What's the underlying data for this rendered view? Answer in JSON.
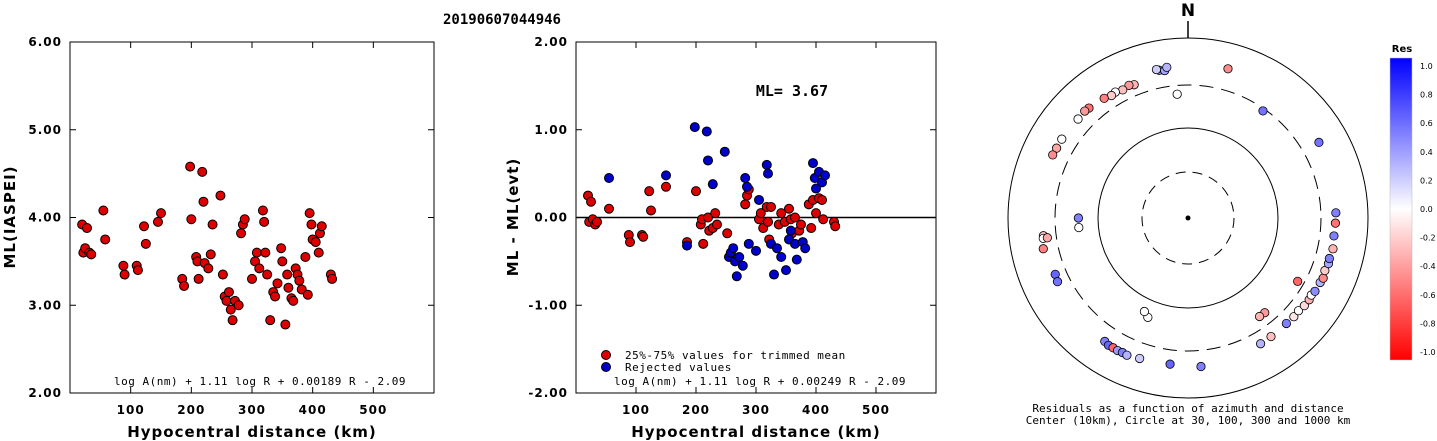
{
  "page_title": "20190607044946",
  "chart_data": [
    {
      "type": "scatter",
      "title": "",
      "xlabel": "Hypocentral distance (km)",
      "ylabel": "ML(IASPEI)",
      "xlim": [
        0,
        600
      ],
      "ylim": [
        2.0,
        6.0
      ],
      "x_ticks": [
        100,
        200,
        300,
        400,
        500
      ],
      "y_ticks": [
        "2.00",
        "3.00",
        "4.00",
        "5.00",
        "6.00"
      ],
      "formula": "log A(nm) + 1.11 log R + 0.00189 R - 2.09",
      "series": [
        {
          "color": "#dd0000",
          "points": [
            [
              20,
              3.92
            ],
            [
              22,
              3.6
            ],
            [
              25,
              3.65
            ],
            [
              28,
              3.88
            ],
            [
              32,
              3.6
            ],
            [
              35,
              3.58
            ],
            [
              55,
              4.08
            ],
            [
              58,
              3.75
            ],
            [
              88,
              3.45
            ],
            [
              90,
              3.35
            ],
            [
              110,
              3.45
            ],
            [
              112,
              3.4
            ],
            [
              122,
              3.9
            ],
            [
              125,
              3.7
            ],
            [
              145,
              3.95
            ],
            [
              150,
              4.05
            ],
            [
              185,
              3.3
            ],
            [
              188,
              3.22
            ],
            [
              198,
              4.58
            ],
            [
              200,
              3.98
            ],
            [
              208,
              3.55
            ],
            [
              210,
              3.5
            ],
            [
              212,
              3.3
            ],
            [
              218,
              4.52
            ],
            [
              220,
              4.18
            ],
            [
              222,
              3.48
            ],
            [
              228,
              3.42
            ],
            [
              232,
              3.58
            ],
            [
              235,
              3.92
            ],
            [
              248,
              4.25
            ],
            [
              252,
              3.35
            ],
            [
              255,
              3.1
            ],
            [
              258,
              3.05
            ],
            [
              262,
              3.15
            ],
            [
              265,
              2.95
            ],
            [
              268,
              2.83
            ],
            [
              272,
              3.05
            ],
            [
              278,
              3.0
            ],
            [
              282,
              3.82
            ],
            [
              285,
              3.92
            ],
            [
              288,
              3.98
            ],
            [
              300,
              3.3
            ],
            [
              305,
              3.5
            ],
            [
              308,
              3.6
            ],
            [
              312,
              3.42
            ],
            [
              318,
              4.08
            ],
            [
              320,
              3.95
            ],
            [
              322,
              3.6
            ],
            [
              325,
              3.35
            ],
            [
              330,
              2.83
            ],
            [
              335,
              3.15
            ],
            [
              338,
              3.1
            ],
            [
              342,
              3.25
            ],
            [
              348,
              3.65
            ],
            [
              350,
              3.5
            ],
            [
              355,
              2.78
            ],
            [
              358,
              3.35
            ],
            [
              360,
              3.2
            ],
            [
              365,
              3.08
            ],
            [
              368,
              3.05
            ],
            [
              372,
              3.42
            ],
            [
              375,
              3.35
            ],
            [
              378,
              3.28
            ],
            [
              382,
              3.18
            ],
            [
              388,
              3.55
            ],
            [
              392,
              3.12
            ],
            [
              395,
              4.05
            ],
            [
              398,
              3.92
            ],
            [
              400,
              3.75
            ],
            [
              405,
              3.72
            ],
            [
              410,
              3.6
            ],
            [
              412,
              3.82
            ],
            [
              415,
              3.9
            ],
            [
              430,
              3.35
            ],
            [
              432,
              3.3
            ]
          ]
        }
      ]
    },
    {
      "type": "scatter",
      "title": "",
      "xlabel": "Hypocentral distance (km)",
      "ylabel": "ML - ML(evt)",
      "xlim": [
        0,
        600
      ],
      "ylim": [
        -2.0,
        2.0
      ],
      "x_ticks": [
        100,
        200,
        300,
        400,
        500
      ],
      "y_ticks": [
        "-2.00",
        "-1.00",
        "0.00",
        "1.00",
        "2.00"
      ],
      "reference_line": 0,
      "ml_label": "ML= 3.67",
      "formula": "log A(nm) + 1.11 log R + 0.00249 R - 2.09",
      "legend": [
        {
          "label": "25%-75% values for trimmed mean",
          "color": "#dd0000"
        },
        {
          "label": "Rejected values",
          "color": "#0000cc"
        }
      ],
      "series": [
        {
          "name": "25%-75% values for trimmed mean",
          "color": "#dd0000",
          "points": [
            [
              20,
              0.25
            ],
            [
              22,
              -0.05
            ],
            [
              25,
              0.18
            ],
            [
              28,
              -0.02
            ],
            [
              32,
              -0.08
            ],
            [
              35,
              -0.05
            ],
            [
              55,
              0.1
            ],
            [
              88,
              -0.2
            ],
            [
              90,
              -0.28
            ],
            [
              110,
              -0.2
            ],
            [
              112,
              -0.22
            ],
            [
              122,
              0.3
            ],
            [
              125,
              0.08
            ],
            [
              150,
              0.35
            ],
            [
              185,
              -0.28
            ],
            [
              200,
              0.3
            ],
            [
              208,
              -0.08
            ],
            [
              210,
              -0.02
            ],
            [
              212,
              -0.3
            ],
            [
              220,
              0.0
            ],
            [
              222,
              -0.15
            ],
            [
              228,
              -0.12
            ],
            [
              232,
              0.05
            ],
            [
              235,
              -0.08
            ],
            [
              252,
              -0.18
            ],
            [
              282,
              0.15
            ],
            [
              285,
              0.25
            ],
            [
              288,
              0.32
            ],
            [
              305,
              -0.02
            ],
            [
              308,
              0.05
            ],
            [
              312,
              -0.12
            ],
            [
              318,
              0.12
            ],
            [
              320,
              -0.05
            ],
            [
              322,
              -0.25
            ],
            [
              325,
              0.12
            ],
            [
              338,
              -0.08
            ],
            [
              342,
              0.05
            ],
            [
              348,
              -0.05
            ],
            [
              355,
              0.1
            ],
            [
              358,
              -0.02
            ],
            [
              360,
              -0.18
            ],
            [
              365,
              0.0
            ],
            [
              372,
              -0.15
            ],
            [
              375,
              -0.08
            ],
            [
              388,
              0.15
            ],
            [
              392,
              -0.12
            ],
            [
              395,
              0.2
            ],
            [
              400,
              0.05
            ],
            [
              405,
              0.22
            ],
            [
              410,
              0.2
            ],
            [
              412,
              -0.02
            ],
            [
              430,
              -0.05
            ],
            [
              432,
              -0.1
            ]
          ]
        },
        {
          "name": "Rejected values",
          "color": "#0000cc",
          "points": [
            [
              55,
              0.45
            ],
            [
              150,
              0.48
            ],
            [
              185,
              -0.32
            ],
            [
              198,
              1.03
            ],
            [
              218,
              0.98
            ],
            [
              220,
              0.65
            ],
            [
              248,
              0.75
            ],
            [
              228,
              0.38
            ],
            [
              255,
              -0.45
            ],
            [
              258,
              -0.4
            ],
            [
              262,
              -0.35
            ],
            [
              265,
              -0.5
            ],
            [
              268,
              -0.67
            ],
            [
              272,
              -0.45
            ],
            [
              278,
              -0.55
            ],
            [
              282,
              0.45
            ],
            [
              285,
              0.35
            ],
            [
              288,
              -0.3
            ],
            [
              300,
              -0.38
            ],
            [
              305,
              0.2
            ],
            [
              318,
              0.6
            ],
            [
              320,
              0.5
            ],
            [
              325,
              -0.3
            ],
            [
              330,
              -0.65
            ],
            [
              335,
              -0.35
            ],
            [
              342,
              -0.45
            ],
            [
              350,
              -0.6
            ],
            [
              355,
              -0.25
            ],
            [
              358,
              -0.15
            ],
            [
              365,
              -0.3
            ],
            [
              368,
              -0.48
            ],
            [
              378,
              -0.28
            ],
            [
              382,
              -0.35
            ],
            [
              395,
              0.62
            ],
            [
              398,
              0.45
            ],
            [
              400,
              0.33
            ],
            [
              405,
              0.52
            ],
            [
              410,
              0.4
            ],
            [
              415,
              0.48
            ]
          ]
        }
      ]
    },
    {
      "type": "polar-scatter",
      "title": "",
      "north_label": "N",
      "caption_lines": [
        "Residuals as a function of azimuth and distance",
        "Center (10km), Circle at 30, 100, 300 and 1000 km"
      ],
      "circle_km": [
        30,
        100,
        300,
        1000
      ],
      "colorbar": {
        "title": "Res",
        "ticks": [
          "1.0",
          "0.8",
          "0.6",
          "0.4",
          "0.2",
          "0.0",
          "-0.2",
          "-0.4",
          "-0.6",
          "-0.8",
          "-1.0"
        ],
        "max_color": "#0000ff",
        "mid_color": "#ffffff",
        "min_color": "#ff0000"
      },
      "stations": [
        {
          "az": 349,
          "dist": 470,
          "res": 0.4
        },
        {
          "az": 351,
          "dist": 455,
          "res": 0.35
        },
        {
          "az": 352,
          "dist": 490,
          "res": 0.3
        },
        {
          "az": 348,
          "dist": 485,
          "res": 0.2
        },
        {
          "az": 15,
          "dist": 520,
          "res": -0.45
        },
        {
          "az": 338,
          "dist": 395,
          "res": -0.3
        },
        {
          "az": 336,
          "dist": 410,
          "res": -0.4
        },
        {
          "az": 333,
          "dist": 395,
          "res": -0.25
        },
        {
          "az": 330,
          "dist": 412,
          "res": 0.0
        },
        {
          "az": 328,
          "dist": 402,
          "res": -0.2
        },
        {
          "az": 325,
          "dist": 420,
          "res": -0.5
        },
        {
          "az": 318,
          "dist": 440,
          "res": -0.55
        },
        {
          "az": 316,
          "dist": 448,
          "res": -0.4
        },
        {
          "az": 312,
          "dist": 440,
          "res": 0.0
        },
        {
          "az": 302,
          "dist": 450,
          "res": 0.0
        },
        {
          "az": 298,
          "dist": 450,
          "res": -0.35
        },
        {
          "az": 295,
          "dist": 455,
          "res": -0.45
        },
        {
          "az": 263,
          "dist": 415,
          "res": -0.2
        },
        {
          "az": 262,
          "dist": 420,
          "res": 0.0
        },
        {
          "az": 258,
          "dist": 440,
          "res": -0.5
        },
        {
          "az": 262,
          "dist": 378,
          "res": -0.35
        },
        {
          "az": 247,
          "dist": 400,
          "res": 0.6
        },
        {
          "az": 244,
          "dist": 410,
          "res": 0.55
        },
        {
          "az": 214,
          "dist": 450,
          "res": 0.5
        },
        {
          "az": 212,
          "dist": 465,
          "res": 0.6
        },
        {
          "az": 210,
          "dist": 462,
          "res": -0.6
        },
        {
          "az": 208,
          "dist": 465,
          "res": 0.4
        },
        {
          "az": 206,
          "dist": 460,
          "res": 0.5
        },
        {
          "az": 204,
          "dist": 466,
          "res": 0.3
        },
        {
          "az": 199,
          "dist": 447,
          "res": 0.2
        },
        {
          "az": 187,
          "dist": 432,
          "res": 0.6
        },
        {
          "az": 175,
          "dist": 453,
          "res": 0.5
        },
        {
          "az": 137,
          "dist": 400,
          "res": 0.5
        },
        {
          "az": 133,
          "dist": 405,
          "res": -0.1
        },
        {
          "az": 130,
          "dist": 400,
          "res": 0.0
        },
        {
          "az": 127,
          "dist": 415,
          "res": -0.15
        },
        {
          "az": 124,
          "dist": 420,
          "res": -0.3
        },
        {
          "az": 122,
          "dist": 412,
          "res": 0.0
        },
        {
          "az": 120,
          "dist": 425,
          "res": 0.45
        },
        {
          "az": 116,
          "dist": 430,
          "res": 0.3
        },
        {
          "az": 114,
          "dist": 440,
          "res": -0.45
        },
        {
          "az": 111,
          "dist": 425,
          "res": -0.2
        },
        {
          "az": 108,
          "dist": 437,
          "res": 0.35
        },
        {
          "az": 106,
          "dist": 430,
          "res": 0.5
        },
        {
          "az": 102,
          "dist": 443,
          "res": -0.3
        },
        {
          "az": 97,
          "dist": 430,
          "res": 0.5
        },
        {
          "az": 92,
          "dist": 435,
          "res": -0.55
        },
        {
          "az": 88,
          "dist": 440,
          "res": 0.5
        },
        {
          "az": 60,
          "dist": 478,
          "res": 0.55
        },
        {
          "az": 150,
          "dist": 410,
          "res": 0.3
        },
        {
          "az": 145,
          "dist": 405,
          "res": -0.25
        },
        {
          "az": 35,
          "dist": 283,
          "res": 0.55
        },
        {
          "az": 355,
          "dist": 240,
          "res": 0.0
        },
        {
          "az": 141,
          "dist": 226,
          "res": -0.4
        },
        {
          "az": 144,
          "dist": 225,
          "res": -0.3
        },
        {
          "az": 120,
          "dist": 255,
          "res": -0.6
        },
        {
          "az": 270,
          "dist": 165,
          "res": 0.5
        },
        {
          "az": 265,
          "dist": 165,
          "res": 0.0
        },
        {
          "az": 202,
          "dist": 155,
          "res": 0.0
        },
        {
          "az": 205,
          "dist": 140,
          "res": 0.0
        }
      ]
    }
  ]
}
